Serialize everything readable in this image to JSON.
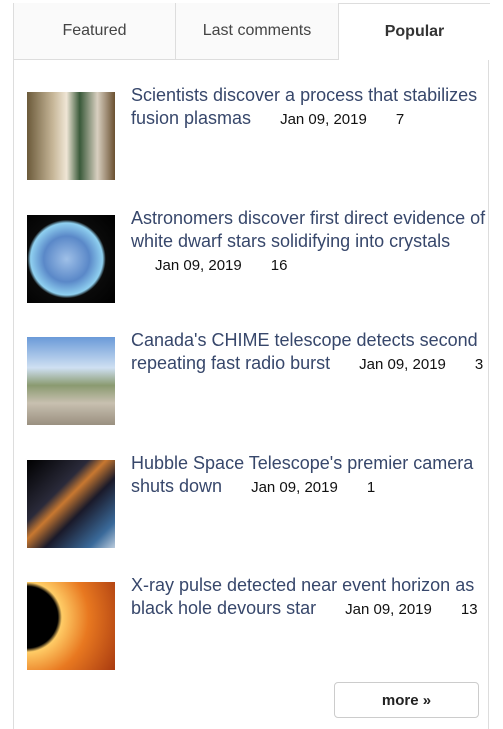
{
  "tabs": [
    "Featured",
    "Last comments",
    "Popular"
  ],
  "items": [
    {
      "title": "Scientists discover a process that stabilizes fusion plasmas",
      "date": "Jan 09, 2019",
      "comments": 7
    },
    {
      "title": "Astronomers discover first direct evidence of white dwarf stars solidifying into crystals",
      "date": "Jan 09, 2019",
      "comments": 16
    },
    {
      "title": "Canada's CHIME telescope detects second repeating fast radio burst",
      "date": "Jan 09, 2019",
      "comments": 3
    },
    {
      "title": "Hubble Space Telescope's premier camera shuts down",
      "date": "Jan 09, 2019",
      "comments": 1
    },
    {
      "title": "X-ray pulse detected near event horizon as black hole devours star",
      "date": "Jan 09, 2019",
      "comments": 13
    }
  ],
  "more": "more »"
}
